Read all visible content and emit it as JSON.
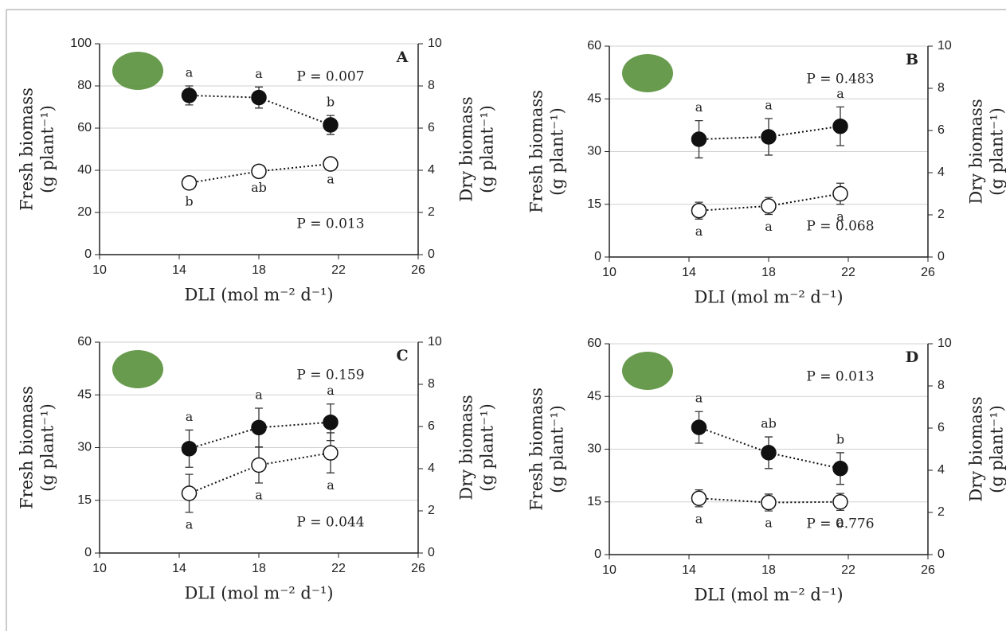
{
  "chart_data": [
    {
      "type": "scatter",
      "title": "A",
      "xlabel": "DLI (mol m⁻² d⁻¹)",
      "ylabel": [
        "Fresh biomass",
        "(g plant⁻¹)"
      ],
      "y2label": [
        "Dry biomass",
        "(g plant⁻¹)"
      ],
      "x": [
        14.5,
        18,
        21.6
      ],
      "xlim": [
        10,
        26
      ],
      "xticks": [
        10,
        14,
        18,
        22,
        26
      ],
      "ylim": [
        0,
        100
      ],
      "yticks": [
        0,
        20,
        40,
        60,
        80,
        100
      ],
      "y2lim": [
        0,
        10
      ],
      "y2ticks": [
        0,
        2,
        4,
        6,
        8,
        10
      ],
      "grid": true,
      "series": [
        {
          "marker": "filled",
          "color": "#111111",
          "values": [
            75.5,
            74.5,
            61.5
          ],
          "errors": [
            4.5,
            5,
            4.5
          ],
          "letters": [
            "a",
            "a",
            "b"
          ],
          "p_label": "P = 0.007"
        },
        {
          "marker": "open",
          "color": "#111111",
          "axis": "y2",
          "values": [
            3.4,
            3.95,
            4.3
          ],
          "errors": [
            0.3,
            0.2,
            0.15
          ],
          "letters": [
            "b",
            "ab",
            "a"
          ],
          "p_label": "P = 0.013"
        }
      ]
    },
    {
      "type": "scatter",
      "title": "B",
      "xlabel": "DLI (mol m⁻² d⁻¹)",
      "ylabel": [
        "Fresh biomass",
        "(g plant⁻¹)"
      ],
      "y2label": [
        "Dry biomass",
        "(g plant⁻¹)"
      ],
      "x": [
        14.5,
        18,
        21.6
      ],
      "xlim": [
        10,
        26
      ],
      "xticks": [
        10,
        14,
        18,
        22,
        26
      ],
      "ylim": [
        0,
        60
      ],
      "yticks": [
        0,
        15,
        30,
        45,
        60
      ],
      "y2lim": [
        0,
        10
      ],
      "y2ticks": [
        0,
        2,
        4,
        6,
        8,
        10
      ],
      "grid": true,
      "series": [
        {
          "marker": "filled",
          "color": "#111111",
          "values": [
            33.5,
            34.2,
            37.2
          ],
          "errors": [
            5.3,
            5.2,
            5.5
          ],
          "letters": [
            "a",
            "a",
            "a"
          ],
          "p_label": "P = 0.483"
        },
        {
          "marker": "open",
          "color": "#111111",
          "axis": "y2",
          "values": [
            2.2,
            2.42,
            3.0
          ],
          "errors": [
            0.4,
            0.4,
            0.5
          ],
          "letters": [
            "a",
            "a",
            "a"
          ],
          "p_label": "P = 0.068"
        }
      ]
    },
    {
      "type": "scatter",
      "title": "C",
      "xlabel": "DLI (mol m⁻² d⁻¹)",
      "ylabel": [
        "Fresh biomass",
        "(g plant⁻¹)"
      ],
      "y2label": [
        "Dry biomass",
        "(g plant⁻¹)"
      ],
      "x": [
        14.5,
        18,
        21.6
      ],
      "xlim": [
        10,
        26
      ],
      "xticks": [
        10,
        14,
        18,
        22,
        26
      ],
      "ylim": [
        0,
        60
      ],
      "yticks": [
        0,
        15,
        30,
        45,
        60
      ],
      "y2lim": [
        0,
        10
      ],
      "y2ticks": [
        0,
        2,
        4,
        6,
        8,
        10
      ],
      "grid": true,
      "series": [
        {
          "marker": "filled",
          "color": "#111111",
          "values": [
            29.7,
            35.7,
            37.2
          ],
          "errors": [
            5.3,
            5.5,
            5.2
          ],
          "letters": [
            "a",
            "a",
            "a"
          ],
          "p_label": "P = 0.159"
        },
        {
          "marker": "open",
          "color": "#111111",
          "axis": "y2",
          "values": [
            2.83,
            4.17,
            4.75
          ],
          "errors": [
            0.9,
            0.85,
            0.95
          ],
          "letters": [
            "a",
            "a",
            "a"
          ],
          "p_label": "P = 0.044"
        }
      ]
    },
    {
      "type": "scatter",
      "title": "D",
      "xlabel": "DLI (mol m⁻² d⁻¹)",
      "ylabel": [
        "Fresh biomass",
        "(g plant⁻¹)"
      ],
      "y2label": [
        "Dry biomass",
        "(g plant⁻¹)"
      ],
      "x": [
        14.5,
        18,
        21.6
      ],
      "xlim": [
        10,
        26
      ],
      "xticks": [
        10,
        14,
        18,
        22,
        26
      ],
      "ylim": [
        0,
        60
      ],
      "yticks": [
        0,
        15,
        30,
        45,
        60
      ],
      "y2lim": [
        0,
        10
      ],
      "y2ticks": [
        0,
        2,
        4,
        6,
        8,
        10
      ],
      "grid": true,
      "series": [
        {
          "marker": "filled",
          "color": "#111111",
          "values": [
            36.2,
            29.0,
            24.5
          ],
          "errors": [
            4.5,
            4.5,
            4.5
          ],
          "letters": [
            "a",
            "ab",
            "b"
          ],
          "p_label": "P = 0.013"
        },
        {
          "marker": "open",
          "color": "#111111",
          "axis": "y2",
          "values": [
            2.67,
            2.47,
            2.5
          ],
          "errors": [
            0.4,
            0.4,
            0.4
          ],
          "letters": [
            "a",
            "a",
            "a"
          ],
          "p_label": "P = 0.776"
        }
      ]
    }
  ]
}
